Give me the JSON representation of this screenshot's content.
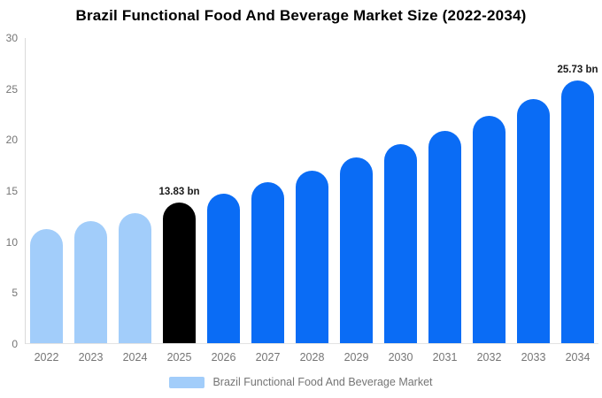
{
  "chart_data": {
    "type": "bar",
    "title": "Brazil Functional Food And Beverage Market Size (2022-2034)",
    "categories": [
      "2022",
      "2023",
      "2024",
      "2025",
      "2026",
      "2027",
      "2028",
      "2029",
      "2030",
      "2031",
      "2032",
      "2033",
      "2034"
    ],
    "values": [
      11.2,
      12.0,
      12.75,
      13.83,
      14.7,
      15.8,
      16.9,
      18.2,
      19.5,
      20.8,
      22.3,
      23.9,
      25.73
    ],
    "point_labels": [
      "",
      "",
      "",
      "13.83 bn",
      "",
      "",
      "",
      "",
      "",
      "",
      "",
      "",
      "25.73 bn"
    ],
    "color_roles": [
      "historical",
      "historical",
      "historical",
      "highlight",
      "forecast",
      "forecast",
      "forecast",
      "forecast",
      "forecast",
      "forecast",
      "forecast",
      "forecast",
      "forecast"
    ],
    "colors": {
      "historical": "#a2cdfa",
      "highlight": "#000000",
      "forecast": "#0a6cf5"
    },
    "xlabel": "",
    "ylabel": "",
    "ylim": [
      0,
      30
    ],
    "yticks": [
      0,
      5,
      10,
      15,
      20,
      25,
      30
    ],
    "grid": false,
    "legend": {
      "label": "Brazil Functional Food And Beverage Market",
      "swatch_color": "#a2cdfa",
      "position": "bottom"
    },
    "axis_colors": {
      "line": "#d9d9d9",
      "tick_text": "#757575"
    }
  }
}
